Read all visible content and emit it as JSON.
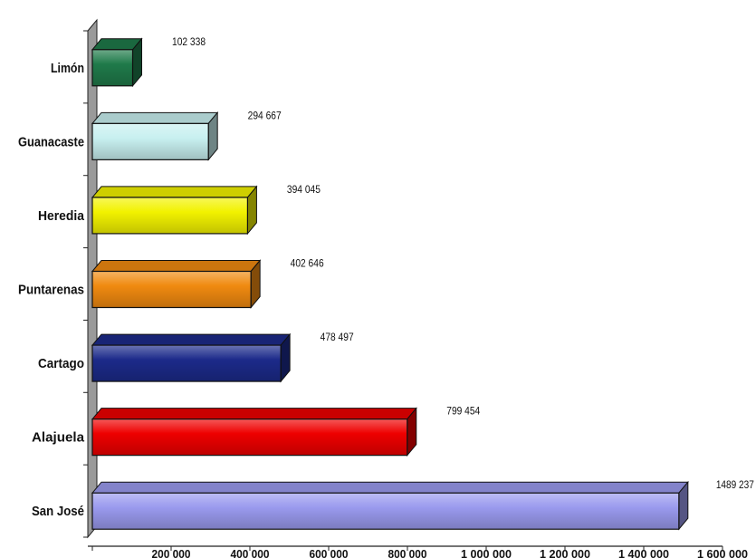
{
  "chart_data": {
    "type": "bar",
    "orientation": "horizontal",
    "style": "3d",
    "categories": [
      "Limón",
      "Guanacaste",
      "Heredia",
      "Puntarenas",
      "Cartago",
      "Alajuela",
      "San José"
    ],
    "values": [
      102338,
      294667,
      394045,
      402646,
      478497,
      799454,
      1489237
    ],
    "value_labels": [
      "102 338",
      "294 667",
      "394 045",
      "402 646",
      "478 497",
      "799 454",
      "1489 237"
    ],
    "colors": [
      "#1f7a4a",
      "#c8f0f0",
      "#f2f200",
      "#f08a10",
      "#1c2a8a",
      "#ee0000",
      "#9a9aee"
    ],
    "xlim": [
      0,
      1600000
    ],
    "x_ticks": [
      200000,
      400000,
      600000,
      800000,
      1000000,
      1200000,
      1400000,
      1600000
    ],
    "x_tick_labels": [
      "200 000",
      "400 000",
      "600 000",
      "800 000",
      "1 000 000",
      "1 200 000",
      "1 400 000",
      "1 600 000"
    ],
    "title": "",
    "xlabel": "",
    "ylabel": "",
    "grid": false,
    "legend": "none"
  }
}
